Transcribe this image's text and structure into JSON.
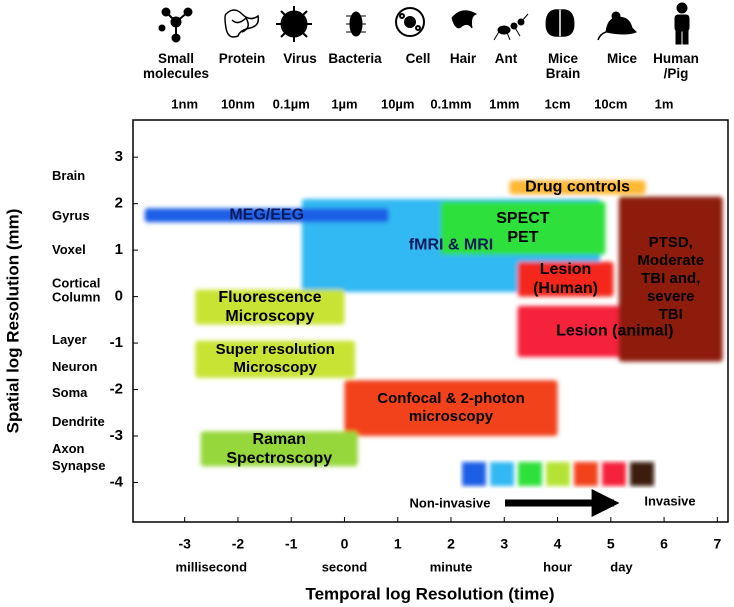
{
  "chart_data": {
    "type": "range",
    "xlabel": "Temporal log Resolution (time)",
    "ylabel": "Spatial log Resolution (mm)",
    "xlim": [
      -3.97,
      7.2
    ],
    "xticks": [
      -3,
      -2,
      -1,
      0,
      1,
      2,
      3,
      4,
      5,
      6,
      7
    ],
    "ylim": [
      -4.85,
      3.8
    ],
    "yticks": [
      3,
      2,
      1,
      0,
      -1,
      -2,
      -3,
      -4
    ],
    "time_ticks": [
      {
        "value": -2.5,
        "label": "millisecond"
      },
      {
        "value": 0,
        "label": "second"
      },
      {
        "value": 2,
        "label": "minute"
      },
      {
        "value": 4,
        "label": "hour"
      },
      {
        "value": 5.2,
        "label": "day"
      }
    ],
    "top_labels": [
      "1nm",
      "10nm",
      "0.1µm",
      "1µm",
      "10µm",
      "0.1mm",
      "1mm",
      "1cm",
      "10cm",
      "1m"
    ],
    "objects": [
      "Small\nmolecules",
      "Protein",
      "Virus",
      "Bacteria",
      "Cell",
      "Hair",
      "Ant",
      "Mice\nBrain",
      "Mice",
      "Human\n/Pig"
    ],
    "structures": [
      "Brain",
      "Gyrus",
      "Voxel",
      "Cortical\nColumn",
      "Layer",
      "Neuron",
      "Soma",
      "Dendrite",
      "Axon",
      "Synapse"
    ],
    "bars": [
      {
        "label": "fMRI & MRI",
        "color": "#33b8f2",
        "x": [
          -0.8,
          4.8
        ],
        "y": [
          0.1,
          2.1
        ]
      },
      {
        "label": "MEG/EEG",
        "color": "#1f5fe6",
        "x": [
          -3.75,
          0.83
        ],
        "y": [
          1.6,
          1.9
        ]
      },
      {
        "label": "SPECT\nPET",
        "color": "#2fe03a",
        "x": [
          1.8,
          4.9
        ],
        "y": [
          0.9,
          2.05
        ]
      },
      {
        "label": "Drug controls",
        "color": "#ffb830",
        "x": [
          3.1,
          5.65
        ],
        "y": [
          2.2,
          2.5
        ]
      },
      {
        "label": "Lesion\n(Human)",
        "color": "#f5281e",
        "x": [
          3.25,
          5.05
        ],
        "y": [
          0,
          0.75
        ]
      },
      {
        "label": "Lesion (animal)",
        "color": "#f5203a",
        "x": [
          3.25,
          6.9
        ],
        "y": [
          -1.3,
          -0.2
        ]
      },
      {
        "label": "PTSD,\nModerate\nTBI and,\nsevere TBI",
        "color": "#8e1d0c",
        "x": [
          5.15,
          7.1
        ],
        "y": [
          -1.4,
          2.15
        ]
      },
      {
        "label": "Fluorescence\nMicroscopy",
        "color": "#c9e336",
        "x": [
          -2.8,
          0
        ],
        "y": [
          -0.6,
          0.15
        ]
      },
      {
        "label": "Super resolution\nMicroscopy",
        "color": "#c9e336",
        "x": [
          -2.8,
          0.2
        ],
        "y": [
          -1.75,
          -0.95
        ]
      },
      {
        "label": "Confocal & 2-photon\nmicroscopy",
        "color": "#f2421e",
        "x": [
          0,
          4.0
        ],
        "y": [
          -3.0,
          -1.8
        ]
      },
      {
        "label": "Raman\nSpectroscopy",
        "color": "#96d83a",
        "x": [
          -2.7,
          0.25
        ],
        "y": [
          -3.65,
          -2.9
        ]
      }
    ],
    "scale_colors": [
      "#1f5fe6",
      "#33b8f2",
      "#2fe03a",
      "#b5e336",
      "#f2421e",
      "#f5203a",
      "#3a1a10"
    ],
    "scale_left": "Non-invasive",
    "scale_right": "Invasive"
  }
}
